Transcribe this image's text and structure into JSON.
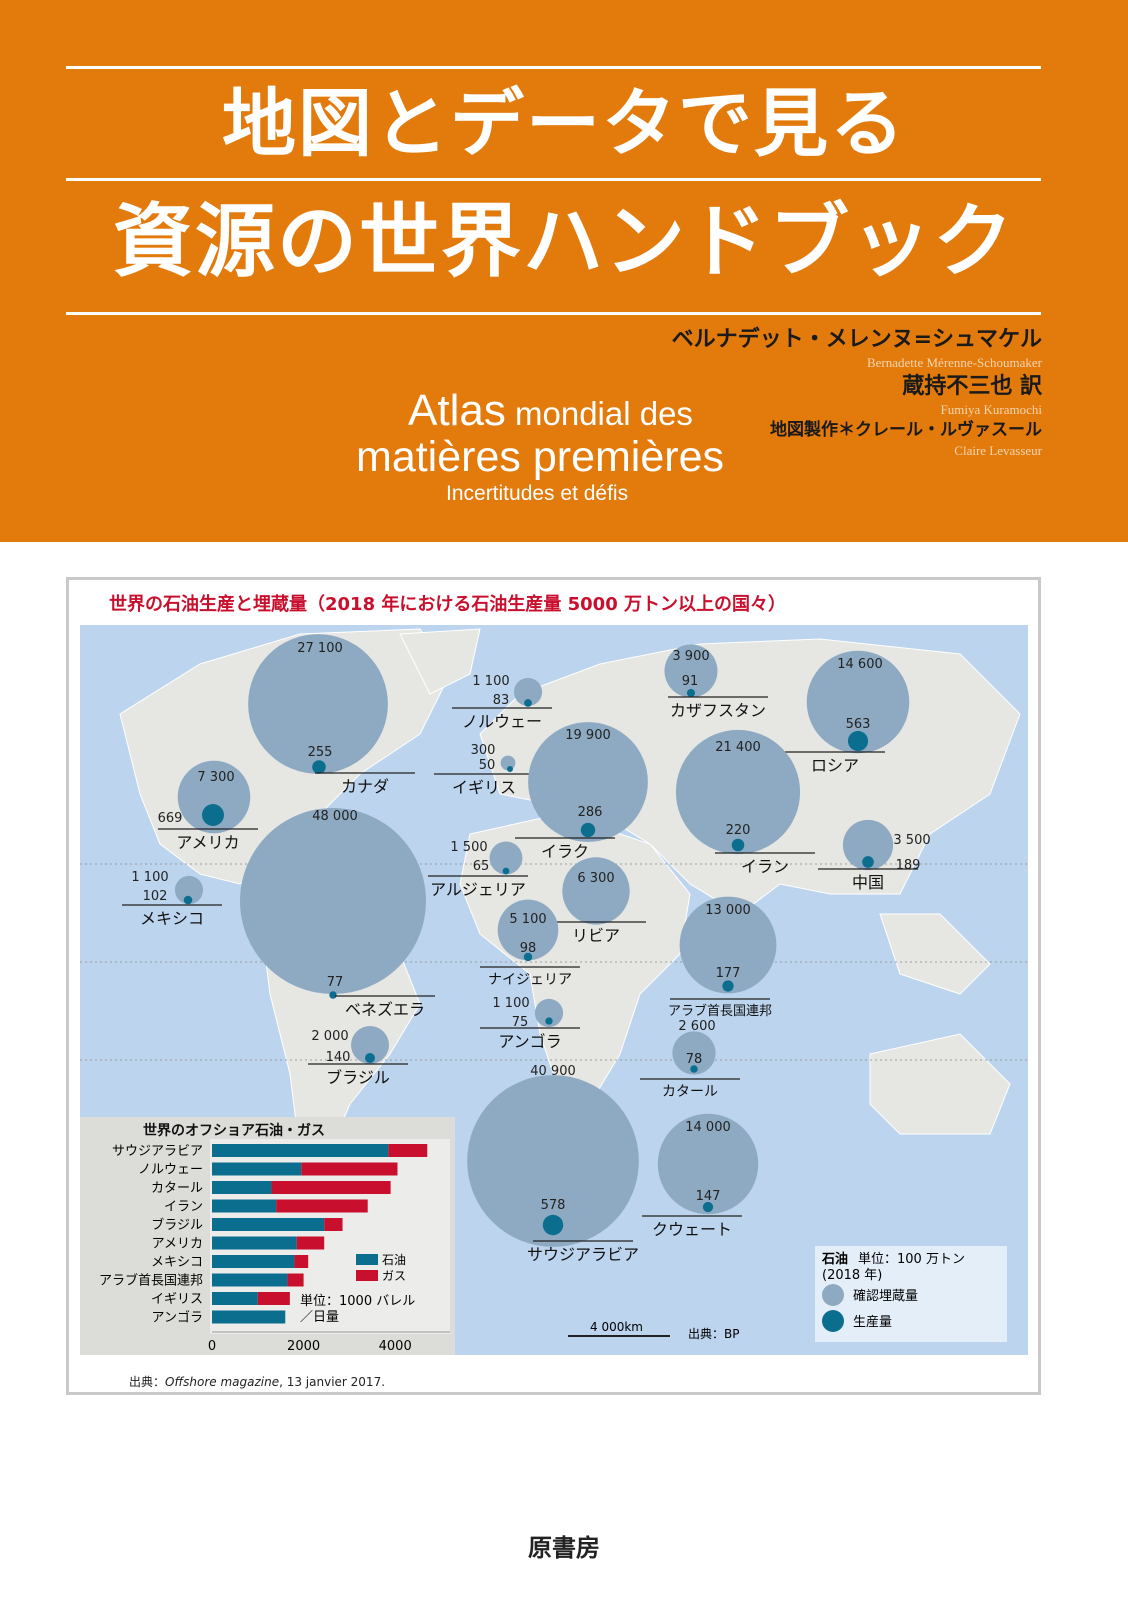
{
  "cover": {
    "title_line1": "地図とデータで見る",
    "title_line2": "資源の世界ハンドブック",
    "author_jp": "ベルナデット・メレンヌ=シュマケル",
    "author_en": "Bernadette Mérenne-Schoumaker",
    "translator_jp": "蔵持不三也 訳",
    "translator_en": "Fumiya Kuramochi",
    "cartographer_jp": "地図製作＊クレール・ルヴァスール",
    "cartographer_en": "Claire Levasseur",
    "french_title_1a": "Atlas",
    "french_title_1b": " mondial des",
    "french_title_2": "matières premières",
    "french_subtitle": "Incertitudes et défis",
    "publisher": "原書房",
    "colors": {
      "orange": "#e27a0c",
      "map_sea": "#bcd4ee",
      "reserve": "#8eaac2",
      "production": "#0c6e8f",
      "red": "#c8102e"
    }
  },
  "map": {
    "title": "世界の石油生産と埋蔵量（2018 年における石油生産量 5000 万トン以上の国々）",
    "countries": [
      {
        "name": "カナダ",
        "reserves": "27 100",
        "production": "255",
        "r": 27100,
        "p": 255
      },
      {
        "name": "アメリカ",
        "reserves": "7 300",
        "production": "669",
        "r": 7300,
        "p": 669
      },
      {
        "name": "ベネズエラ",
        "reserves": "48 000",
        "production": "77",
        "r": 48000,
        "p": 77
      },
      {
        "name": "メキシコ",
        "reserves": "1 100",
        "production": "102",
        "r": 1100,
        "p": 102
      },
      {
        "name": "ブラジル",
        "reserves": "2 000",
        "production": "140",
        "r": 2000,
        "p": 140
      },
      {
        "name": "ノルウェー",
        "reserves": "1 100",
        "production": "83",
        "r": 1100,
        "p": 83
      },
      {
        "name": "イギリス",
        "reserves": "300",
        "production": "50",
        "r": 300,
        "p": 50
      },
      {
        "name": "イラク",
        "reserves": "19 900",
        "production": "286",
        "r": 19900,
        "p": 286
      },
      {
        "name": "カザフスタン",
        "reserves": "3 900",
        "production": "91",
        "r": 3900,
        "p": 91
      },
      {
        "name": "ロシア",
        "reserves": "14 600",
        "production": "563",
        "r": 14600,
        "p": 563
      },
      {
        "name": "イラン",
        "reserves": "21 400",
        "production": "220",
        "r": 21400,
        "p": 220
      },
      {
        "name": "中国",
        "reserves": "3 500",
        "production": "189",
        "r": 3500,
        "p": 189
      },
      {
        "name": "アルジェリア",
        "reserves": "1 500",
        "production": "65",
        "r": 1500,
        "p": 65
      },
      {
        "name": "リビア",
        "reserves": "6 300",
        "production": "",
        "r": 6300,
        "p": 0
      },
      {
        "name": "ナイジェリア",
        "reserves": "5 100",
        "production": "98",
        "r": 5100,
        "p": 98
      },
      {
        "name": "アンゴラ",
        "reserves": "1 100",
        "production": "75",
        "r": 1100,
        "p": 75
      },
      {
        "name": "アラブ首長国連邦",
        "reserves": "13 000",
        "production": "177",
        "r": 13000,
        "p": 177
      },
      {
        "name": "カタール",
        "reserves": "2 600",
        "production": "78",
        "r": 2600,
        "p": 78
      },
      {
        "name": "サウジアラビア",
        "reserves": "40 900",
        "production": "578",
        "r": 40900,
        "p": 578
      },
      {
        "name": "クウェート",
        "reserves": "14 000",
        "production": "147",
        "r": 14000,
        "p": 147
      }
    ],
    "scale_label": "4 000km",
    "source": "出典：BP",
    "legend": {
      "title_bold": "石油",
      "unit": "単位：100 万トン",
      "year": "(2018 年)",
      "reserves": "確認埋蔵量",
      "production": "生産量"
    }
  },
  "chart_data": {
    "type": "bar",
    "stacked": true,
    "orientation": "horizontal",
    "title": "世界のオフショア石油・ガス",
    "categories": [
      "サウジアラビア",
      "ノルウェー",
      "カタール",
      "イラン",
      "ブラジル",
      "アメリカ",
      "メキシコ",
      "アラブ首長国連邦",
      "イギリス",
      "アンゴラ"
    ],
    "series": [
      {
        "name": "石油",
        "color": "#0c6e8f",
        "values": [
          3850,
          1950,
          1300,
          1400,
          2450,
          1850,
          1800,
          1650,
          1000,
          1600
        ]
      },
      {
        "name": "ガス",
        "color": "#c8102e",
        "values": [
          850,
          2100,
          2600,
          2000,
          400,
          600,
          300,
          350,
          700,
          0
        ]
      }
    ],
    "xlim": [
      0,
      5000
    ],
    "xticks": [
      "0",
      "2000",
      "4000"
    ],
    "unit_label_1": "単位：1000 バレル",
    "unit_label_2": "／日量",
    "source_prefix": "出典：",
    "source_italic": "Offshore magazine",
    "source_suffix": ", 13 janvier 2017."
  }
}
